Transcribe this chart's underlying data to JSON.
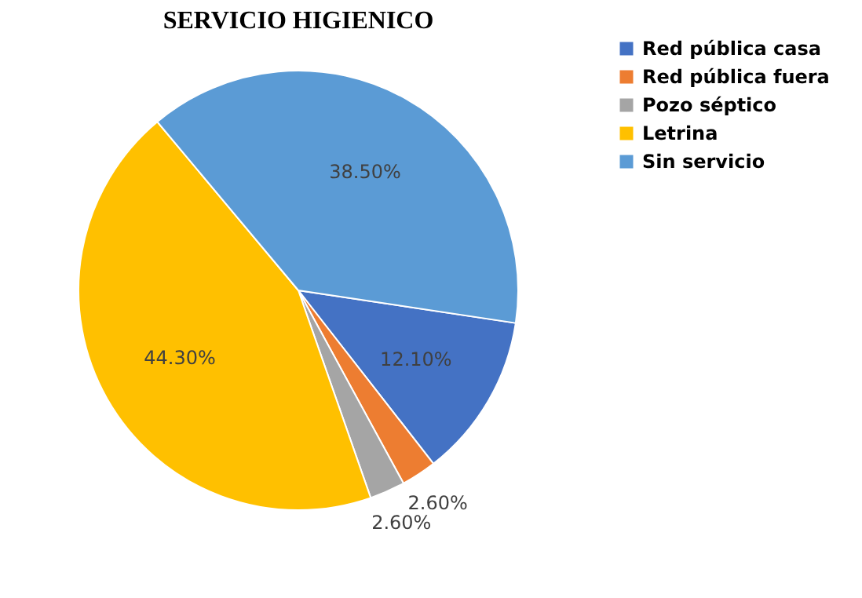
{
  "chart_data": {
    "type": "pie",
    "title": "SERVICIO HIGIENICO",
    "categories": [
      "Red pública casa",
      "Red pública fuera",
      "Pozo séptico",
      "Letrina",
      "Sin servicio"
    ],
    "values": [
      12.1,
      2.6,
      2.6,
      44.3,
      38.5
    ],
    "value_labels": [
      "12.10%",
      "2.60%",
      "2.60%",
      "44.30%",
      "38.50%"
    ],
    "colors": [
      "#4472c4",
      "#ed7d31",
      "#a5a5a5",
      "#ffc000",
      "#5b9bd5"
    ],
    "legend": "right"
  }
}
